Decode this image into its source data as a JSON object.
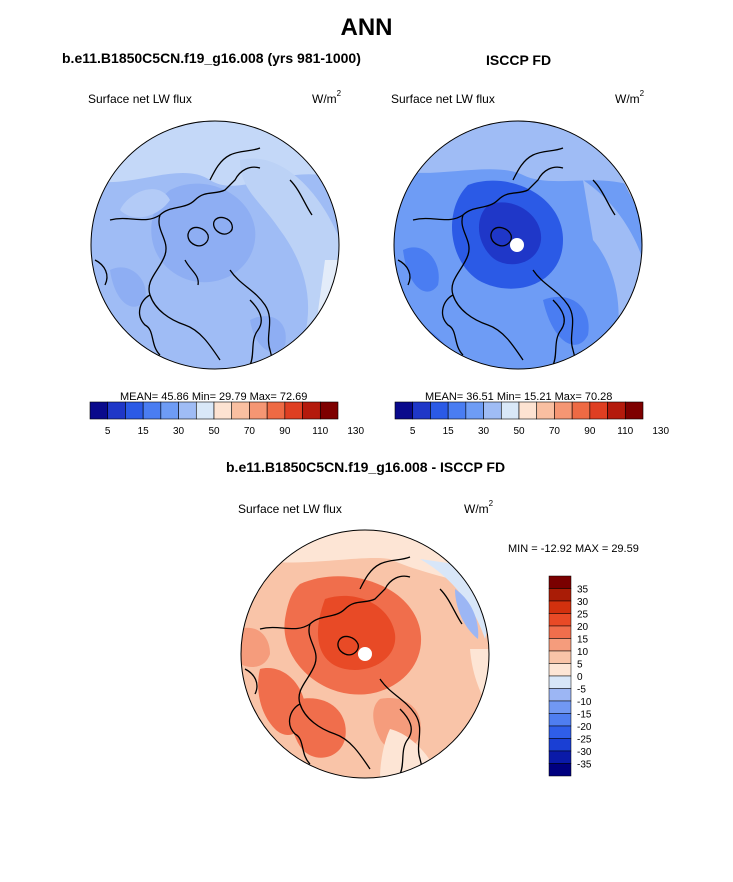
{
  "main_title": "ANN",
  "colors": {
    "mean_scale": [
      "#0a0a8c",
      "#1f37c8",
      "#2b5ae6",
      "#4a7df2",
      "#6e9cf5",
      "#9fbcf5",
      "#d9e8f8",
      "#fde3d2",
      "#f9bfa1",
      "#f59673",
      "#ee6a44",
      "#df3f22",
      "#b41a0c",
      "#7e0000"
    ],
    "diff_scale": [
      "#00007f",
      "#0a1aa8",
      "#1a3fd4",
      "#2f5ee8",
      "#4f7ef0",
      "#7198f2",
      "#9cb6f4",
      "#d8e6f8",
      "#fde5d5",
      "#f9c4a8",
      "#f59c7c",
      "#f06e4c",
      "#e84a26",
      "#d2310e",
      "#a91c06",
      "#7a0000"
    ]
  },
  "left_panel": {
    "title": "b.e11.B1850C5CN.f19_g16.008 (yrs 981-1000)",
    "variable": "Surface net LW flux",
    "units": "W/m",
    "units_exp": "2",
    "stats": "MEAN=  45.86  Min=  29.79  Max=  72.69"
  },
  "right_panel": {
    "title": "ISCCP FD",
    "variable": "Surface net LW flux",
    "units": "W/m",
    "units_exp": "2",
    "stats": "MEAN=  36.51  Min=  15.21  Max=  70.28"
  },
  "bottom_panel": {
    "title": "b.e11.B1850C5CN.f19_g16.008 - ISCCP FD",
    "variable": "Surface net LW flux",
    "units": "W/m",
    "units_exp": "2",
    "stats": "MIN = -12.92 MAX =  29.59"
  },
  "chart_data": [
    {
      "type": "heatmap",
      "title": "b.e11.B1850C5CN.f19_g16.008 (yrs 981-1000)",
      "subtitle": "Surface net LW flux",
      "units": "W/m2",
      "projection": "north polar stereographic",
      "mean": 45.86,
      "min": 29.79,
      "max": 72.69,
      "colorbar_levels": [
        5,
        10,
        15,
        20,
        30,
        40,
        50,
        60,
        70,
        80,
        90,
        100,
        110,
        120,
        130
      ],
      "colorbar_tick_labels": [
        "5",
        "15",
        "30",
        "50",
        "70",
        "90",
        "110",
        "130"
      ],
      "colorbar_tick_values": [
        5,
        15,
        30,
        50,
        70,
        90,
        110,
        130
      ]
    },
    {
      "type": "heatmap",
      "title": "ISCCP FD",
      "subtitle": "Surface net LW flux",
      "units": "W/m2",
      "projection": "north polar stereographic",
      "mean": 36.51,
      "min": 15.21,
      "max": 70.28,
      "colorbar_levels": [
        5,
        10,
        15,
        20,
        30,
        40,
        50,
        60,
        70,
        80,
        90,
        100,
        110,
        120,
        130
      ],
      "colorbar_tick_labels": [
        "5",
        "15",
        "30",
        "50",
        "70",
        "90",
        "110",
        "130"
      ],
      "colorbar_tick_values": [
        5,
        15,
        30,
        50,
        70,
        90,
        110,
        130
      ]
    },
    {
      "type": "heatmap",
      "title": "b.e11.B1850C5CN.f19_g16.008 - ISCCP FD",
      "subtitle": "Surface net LW flux",
      "units": "W/m2",
      "projection": "north polar stereographic",
      "min": -12.92,
      "max": 29.59,
      "colorbar_levels": [
        35,
        30,
        25,
        20,
        15,
        10,
        5,
        0,
        -5,
        -10,
        -15,
        -20,
        -25,
        -30,
        -35
      ],
      "colorbar_tick_labels": [
        "35",
        "30",
        "25",
        "20",
        "15",
        "10",
        "5",
        "0",
        "-5",
        "-10",
        "-15",
        "-20",
        "-25",
        "-30",
        "-35"
      ]
    }
  ]
}
